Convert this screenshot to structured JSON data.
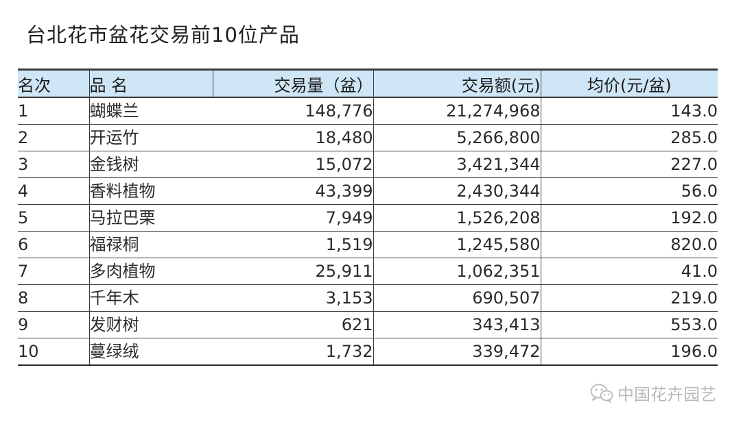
{
  "title": "台北花市盆花交易前10位产品",
  "table": {
    "headers": {
      "rank": "名次",
      "name": "品 名",
      "volume": "交易量（盆）",
      "amount": "交易额(元)",
      "avg_price": "均价(元/盆)"
    },
    "rows": [
      {
        "rank": "1",
        "name": "蝴蝶兰",
        "volume": "148,776",
        "amount": "21,274,968",
        "avg_price": "143.0"
      },
      {
        "rank": "2",
        "name": "开运竹",
        "volume": "18,480",
        "amount": "5,266,800",
        "avg_price": "285.0"
      },
      {
        "rank": "3",
        "name": "金钱树",
        "volume": "15,072",
        "amount": "3,421,344",
        "avg_price": "227.0"
      },
      {
        "rank": "4",
        "name": "香料植物",
        "volume": "43,399",
        "amount": "2,430,344",
        "avg_price": "56.0"
      },
      {
        "rank": "5",
        "name": "马拉巴栗",
        "volume": "7,949",
        "amount": "1,526,208",
        "avg_price": "192.0"
      },
      {
        "rank": "6",
        "name": "福禄桐",
        "volume": "1,519",
        "amount": "1,245,580",
        "avg_price": "820.0"
      },
      {
        "rank": "7",
        "name": "多肉植物",
        "volume": "25,911",
        "amount": "1,062,351",
        "avg_price": "41.0"
      },
      {
        "rank": "8",
        "name": "千年木",
        "volume": "3,153",
        "amount": "690,507",
        "avg_price": "219.0"
      },
      {
        "rank": "9",
        "name": "发财树",
        "volume": "621",
        "amount": "343,413",
        "avg_price": "553.0"
      },
      {
        "rank": "10",
        "name": "蔓绿绒",
        "volume": "1,732",
        "amount": "339,472",
        "avg_price": "196.0"
      }
    ]
  },
  "watermark": {
    "text": "中国花卉园艺",
    "icon": "wechat-icon"
  },
  "colors": {
    "header_bg": "#cfe6f6",
    "rule": "#3a3a3a",
    "watermark": "#b9b9b9"
  }
}
